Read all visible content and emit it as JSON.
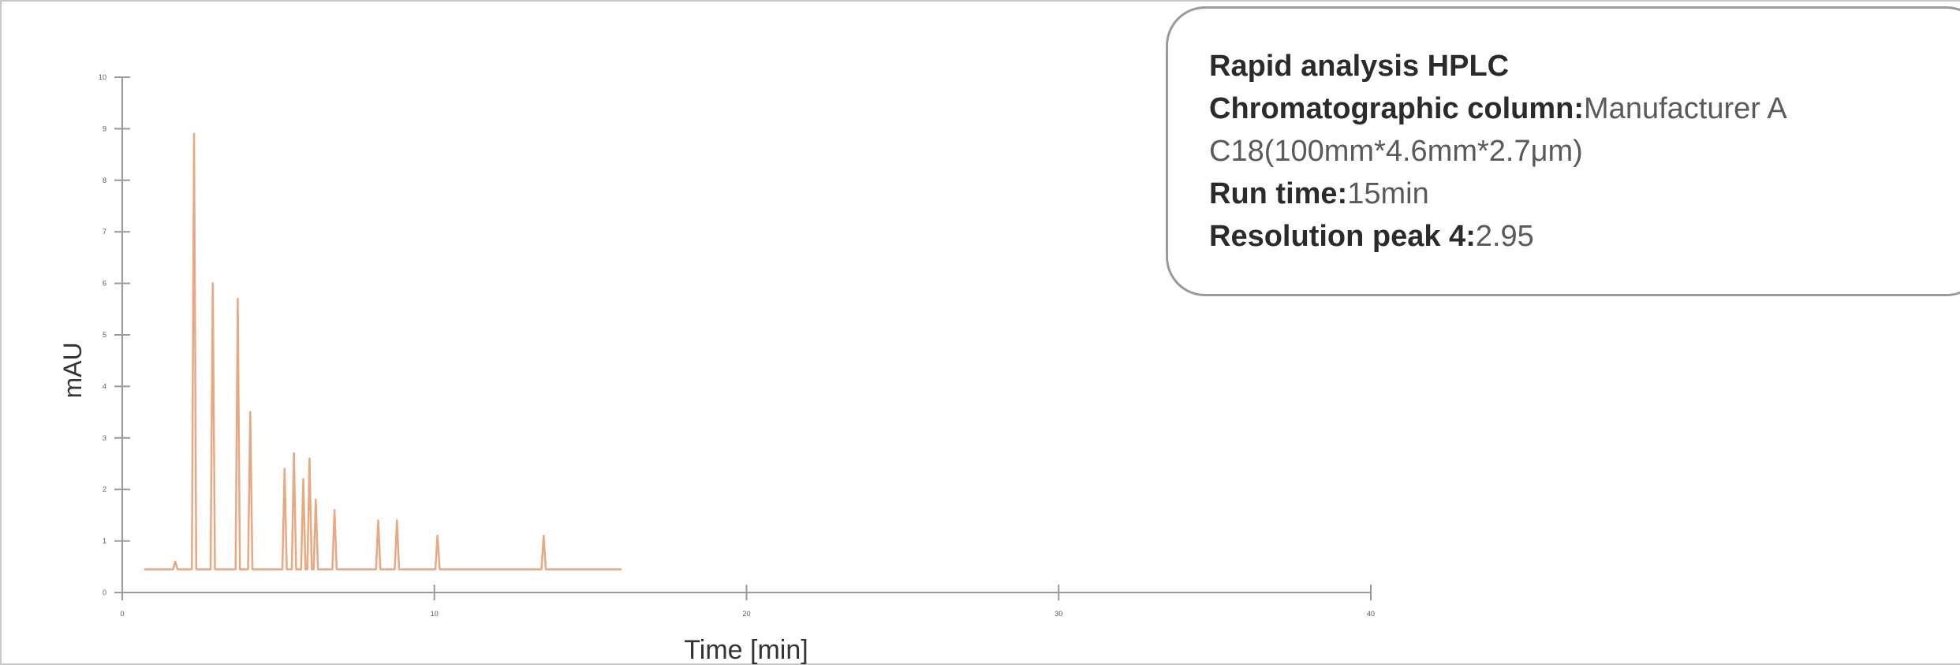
{
  "chart_data": {
    "type": "line",
    "xlabel": "Time [min]",
    "ylabel": "mAU",
    "xlim": [
      0,
      40
    ],
    "ylim": [
      0,
      10
    ],
    "x_ticks": [
      0,
      10,
      20,
      30,
      40
    ],
    "y_ticks": [
      0,
      1,
      2,
      3,
      4,
      5,
      6,
      7,
      8,
      9,
      10
    ],
    "x_tick_labels": [
      "0",
      "10",
      "20",
      "30",
      "40"
    ],
    "y_tick_labels": [
      "0",
      "1",
      "2",
      "3",
      "4",
      "5",
      "6",
      "7",
      "8",
      "9",
      "10"
    ],
    "grid": false,
    "series": [
      {
        "color": "#e8a882",
        "baseline": 0.45,
        "x_end": 16,
        "x_start": 0.7,
        "peaks": [
          {
            "x": 1.7,
            "y": 0.6
          },
          {
            "x": 2.3,
            "y": 8.9
          },
          {
            "x": 2.9,
            "y": 6.0
          },
          {
            "x": 3.7,
            "y": 5.7
          },
          {
            "x": 4.1,
            "y": 3.5
          },
          {
            "x": 5.2,
            "y": 2.4
          },
          {
            "x": 5.5,
            "y": 2.7
          },
          {
            "x": 5.8,
            "y": 2.2
          },
          {
            "x": 6.0,
            "y": 2.6
          },
          {
            "x": 6.2,
            "y": 1.8
          },
          {
            "x": 6.8,
            "y": 1.6
          },
          {
            "x": 8.2,
            "y": 1.4
          },
          {
            "x": 8.8,
            "y": 1.4
          },
          {
            "x": 10.1,
            "y": 1.1
          },
          {
            "x": 13.5,
            "y": 1.1
          }
        ]
      }
    ]
  },
  "info_box": {
    "title": "Rapid analysis HPLC",
    "column_label": "Chromatographic column:",
    "column_value_1": "Manufacturer A",
    "column_value_2": "C18(100mm*4.6mm*2.7μm)",
    "runtime_label": "Run time:",
    "runtime_value": "15min",
    "resolution_label": "Resolution peak 4:",
    "resolution_value": "2.95"
  }
}
